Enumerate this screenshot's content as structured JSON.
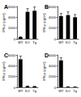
{
  "chart_data": [
    {
      "type": "bar",
      "title": "A",
      "y_label": "IFN-γ (pg/ml)",
      "categories": [
        "WT",
        "KO",
        "Tg"
      ],
      "values": [
        300,
        5000,
        5200
      ],
      "errors": [
        100,
        600,
        700
      ],
      "color": "#000000",
      "ylim": [
        0,
        6000
      ],
      "yticks": [
        0,
        2000,
        4000,
        6000
      ]
    },
    {
      "type": "bar",
      "title": "B",
      "y_label": "IFN-γ (pg/ml)",
      "categories": [
        "WT",
        "KO",
        "Tg"
      ],
      "values": [
        4200,
        4400,
        4000
      ],
      "errors": [
        500,
        600,
        500
      ],
      "color": "#000000",
      "ylim": [
        0,
        6000
      ],
      "yticks": [
        0,
        2000,
        4000,
        6000
      ]
    },
    {
      "type": "bar",
      "title": "C",
      "y_label": "IFN-γ (pg/ml)",
      "categories": [
        "WT",
        "KO",
        "Tg"
      ],
      "values": [
        5200,
        200,
        150
      ],
      "errors": [
        600,
        50,
        50
      ],
      "color": "#000000",
      "ylim": [
        0,
        6000
      ],
      "yticks": [
        0,
        2000,
        4000,
        6000
      ]
    },
    {
      "type": "bar",
      "title": "D",
      "y_label": "IFN-γ (pg/ml)",
      "categories": [
        "WT",
        "KO",
        "Tg"
      ],
      "values": [
        5000,
        100,
        80
      ],
      "errors": [
        500,
        40,
        30
      ],
      "color": "#000000",
      "ylim": [
        0,
        6000
      ],
      "yticks": [
        0,
        2000,
        4000,
        6000
      ]
    }
  ]
}
